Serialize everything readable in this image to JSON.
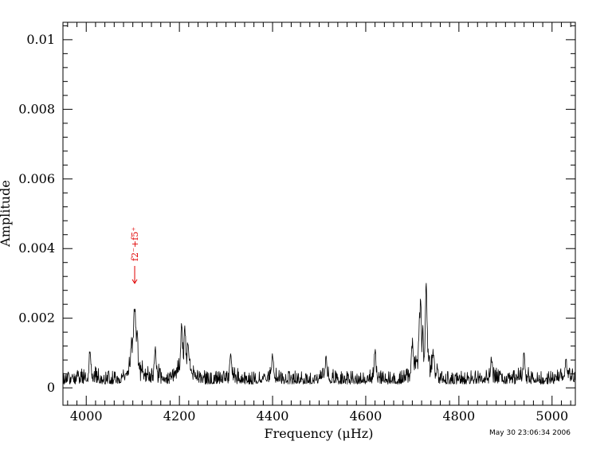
{
  "chart_data": {
    "type": "line",
    "title": "",
    "xlabel": "Frequency (μHz)",
    "ylabel": "Amplitude",
    "xlim": [
      3950,
      5050
    ],
    "ylim": [
      -0.0005,
      0.0105
    ],
    "x_ticks": [
      4000,
      4200,
      4400,
      4600,
      4800,
      5000
    ],
    "x_tick_labels": [
      "4000",
      "4200",
      "4400",
      "4600",
      "4800",
      "5000"
    ],
    "y_ticks": [
      0,
      0.002,
      0.004,
      0.006,
      0.008,
      0.01
    ],
    "y_tick_labels": [
      "0",
      "0.002",
      "0.004",
      "0.006",
      "0.008",
      "0.01"
    ],
    "grid": false,
    "series": [
      {
        "color": "#000000",
        "noise_floor": 0.0003,
        "peaks": [
          {
            "x": 4008,
            "y": 0.00105
          },
          {
            "x": 4098,
            "y": 0.0009
          },
          {
            "x": 4104,
            "y": 0.0023
          },
          {
            "x": 4109,
            "y": 0.0015
          },
          {
            "x": 4148,
            "y": 0.0011
          },
          {
            "x": 4205,
            "y": 0.0014
          },
          {
            "x": 4212,
            "y": 0.00145
          },
          {
            "x": 4218,
            "y": 0.0012
          },
          {
            "x": 4310,
            "y": 0.0009
          },
          {
            "x": 4400,
            "y": 0.0009
          },
          {
            "x": 4515,
            "y": 0.00085
          },
          {
            "x": 4620,
            "y": 0.001
          },
          {
            "x": 4700,
            "y": 0.0011
          },
          {
            "x": 4717,
            "y": 0.0021
          },
          {
            "x": 4722,
            "y": 0.0013
          },
          {
            "x": 4730,
            "y": 0.00245
          },
          {
            "x": 4745,
            "y": 0.001
          },
          {
            "x": 4870,
            "y": 0.0008
          },
          {
            "x": 4940,
            "y": 0.0009
          },
          {
            "x": 5030,
            "y": 0.0008
          }
        ]
      }
    ],
    "annotations": [
      {
        "text": "f2⁻+f5⁺",
        "x": 4104,
        "y": 0.003,
        "color": "#e00000",
        "arrow": "down"
      }
    ],
    "timestamp": "May 30 23:06:34 2006"
  }
}
